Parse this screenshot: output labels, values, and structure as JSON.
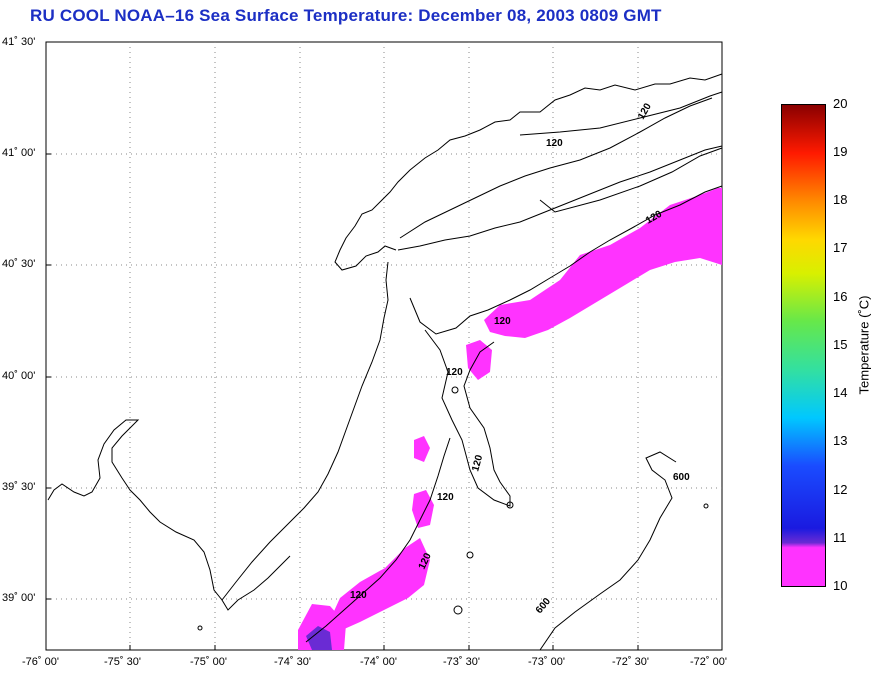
{
  "title": "RU COOL  NOAA–16  Sea Surface Temperature:  December 08, 2003 0809 GMT",
  "latitude_labels": [
    "41˚ 30'",
    "41˚ 00'",
    "40˚ 30'",
    "40˚ 00'",
    "39˚ 30'",
    "39˚ 00'"
  ],
  "longitude_labels": [
    "-76˚ 00'",
    "-75˚ 30'",
    "-75˚ 00'",
    "-74˚ 30'",
    "-74˚ 00'",
    "-73˚ 30'",
    "-73˚ 00'",
    "-72˚ 30'",
    "-72˚ 00'"
  ],
  "contour_labels": [
    "120",
    "120",
    "120",
    "120",
    "120",
    "120",
    "120",
    "120",
    "120",
    "600",
    "600"
  ],
  "colorbar": {
    "ticks": [
      "20",
      "19",
      "18",
      "17",
      "16",
      "15",
      "14",
      "13",
      "12",
      "11",
      "10"
    ],
    "label": "Temperature (˚C)",
    "range": [
      10,
      20
    ]
  },
  "colors": {
    "title": "#1c2fc4",
    "sst_observed": "#ff33ff",
    "coastline": "#000000",
    "grid": "#888888"
  }
}
